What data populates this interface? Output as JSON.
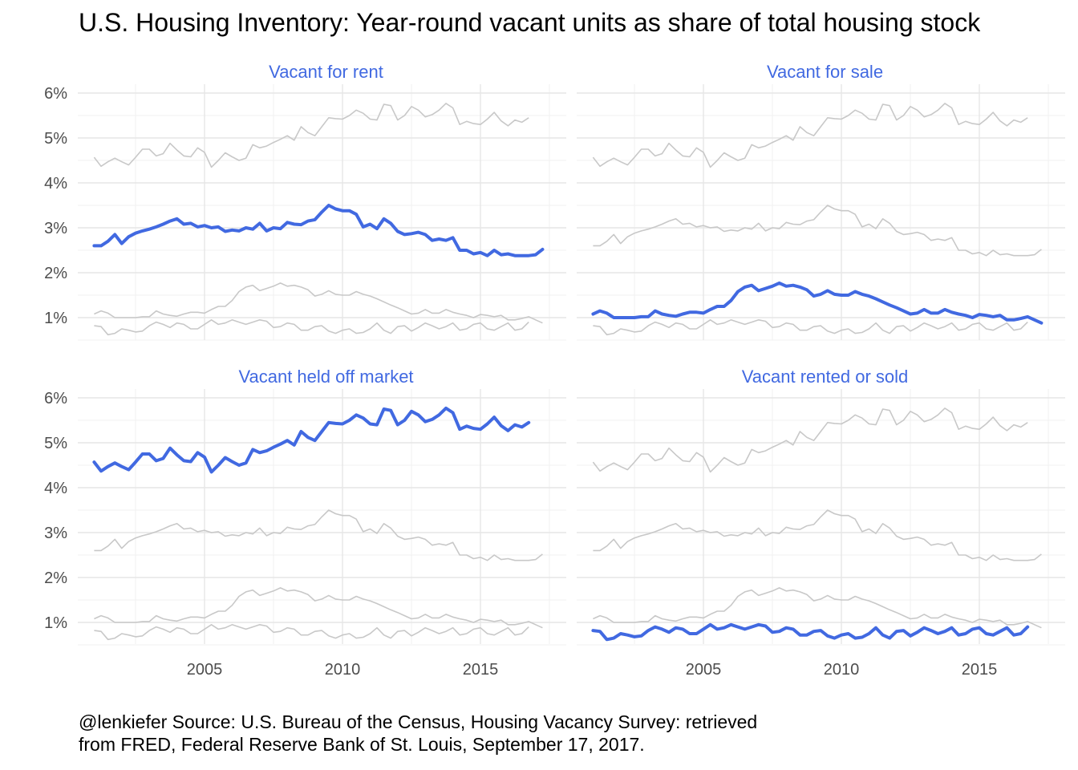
{
  "chart": {
    "title": "U.S. Housing Inventory: Year-round vacant units as share of total housing stock",
    "caption_lines": [
      "@lenkiefer Source: U.S. Bureau of the Census, Housing Vacancy Survey: retrieved",
      "from FRED, Federal Reserve Bank of St. Louis, September 17, 2017."
    ]
  },
  "chart_data": {
    "type": "line",
    "title": "U.S. Housing Inventory: Year-round vacant units as share of total housing stock",
    "xlabel": "",
    "ylabel": "",
    "x_ticks": [
      2005,
      2010,
      2015
    ],
    "y_ticks": [
      1,
      2,
      3,
      4,
      5,
      6
    ],
    "y_tick_labels": [
      "1%",
      "2%",
      "3%",
      "4%",
      "5%",
      "6%"
    ],
    "xlim": [
      2000.5,
      2018.0
    ],
    "ylim": [
      0.45,
      6.25
    ],
    "grid": true,
    "start_x": 2001.0,
    "step": 0.25,
    "series": [
      {
        "name": "Vacant for rent",
        "values": [
          2.6,
          2.6,
          2.7,
          2.85,
          2.65,
          2.8,
          2.88,
          2.93,
          2.97,
          3.02,
          3.08,
          3.15,
          3.2,
          3.08,
          3.1,
          3.02,
          3.05,
          3.0,
          3.02,
          2.92,
          2.95,
          2.93,
          3.0,
          2.97,
          3.1,
          2.93,
          3.0,
          2.98,
          3.12,
          3.08,
          3.07,
          3.15,
          3.18,
          3.35,
          3.5,
          3.42,
          3.38,
          3.38,
          3.3,
          3.02,
          3.08,
          2.98,
          3.2,
          3.1,
          2.92,
          2.85,
          2.87,
          2.9,
          2.85,
          2.72,
          2.75,
          2.72,
          2.78,
          2.5,
          2.5,
          2.42,
          2.45,
          2.38,
          2.5,
          2.4,
          2.42,
          2.38,
          2.38,
          2.38,
          2.4,
          2.52
        ]
      },
      {
        "name": "Vacant for sale",
        "values": [
          1.08,
          1.15,
          1.1,
          1.0,
          1.0,
          1.0,
          1.0,
          1.02,
          1.02,
          1.15,
          1.08,
          1.05,
          1.03,
          1.08,
          1.12,
          1.12,
          1.1,
          1.18,
          1.25,
          1.25,
          1.38,
          1.58,
          1.68,
          1.72,
          1.6,
          1.65,
          1.7,
          1.77,
          1.7,
          1.72,
          1.68,
          1.62,
          1.48,
          1.52,
          1.6,
          1.52,
          1.5,
          1.5,
          1.58,
          1.52,
          1.48,
          1.42,
          1.35,
          1.28,
          1.22,
          1.15,
          1.08,
          1.1,
          1.18,
          1.1,
          1.1,
          1.18,
          1.12,
          1.08,
          1.05,
          1.0,
          1.07,
          1.05,
          1.02,
          1.05,
          0.95,
          0.95,
          0.98,
          1.02,
          0.95,
          0.88
        ]
      },
      {
        "name": "Vacant held off market",
        "values": [
          4.57,
          4.37,
          4.47,
          4.55,
          4.47,
          4.4,
          4.57,
          4.75,
          4.75,
          4.6,
          4.65,
          4.88,
          4.73,
          4.6,
          4.58,
          4.78,
          4.68,
          4.35,
          4.5,
          4.67,
          4.58,
          4.5,
          4.55,
          4.85,
          4.78,
          4.82,
          4.9,
          4.97,
          5.05,
          4.95,
          5.25,
          5.12,
          5.05,
          5.25,
          5.45,
          5.43,
          5.42,
          5.5,
          5.62,
          5.55,
          5.42,
          5.4,
          5.75,
          5.72,
          5.4,
          5.5,
          5.7,
          5.62,
          5.47,
          5.52,
          5.62,
          5.77,
          5.67,
          5.3,
          5.37,
          5.32,
          5.3,
          5.42,
          5.57,
          5.38,
          5.27,
          5.4,
          5.35,
          5.45
        ]
      },
      {
        "name": "Vacant rented or sold",
        "values": [
          0.82,
          0.8,
          0.62,
          0.65,
          0.75,
          0.72,
          0.68,
          0.7,
          0.82,
          0.9,
          0.85,
          0.78,
          0.88,
          0.85,
          0.75,
          0.75,
          0.85,
          0.95,
          0.85,
          0.88,
          0.95,
          0.9,
          0.85,
          0.9,
          0.95,
          0.92,
          0.78,
          0.8,
          0.88,
          0.85,
          0.72,
          0.72,
          0.8,
          0.82,
          0.7,
          0.65,
          0.72,
          0.75,
          0.65,
          0.67,
          0.75,
          0.88,
          0.72,
          0.65,
          0.8,
          0.82,
          0.7,
          0.78,
          0.88,
          0.82,
          0.75,
          0.8,
          0.88,
          0.72,
          0.75,
          0.85,
          0.88,
          0.75,
          0.72,
          0.8,
          0.88,
          0.72,
          0.75,
          0.9
        ]
      }
    ]
  }
}
